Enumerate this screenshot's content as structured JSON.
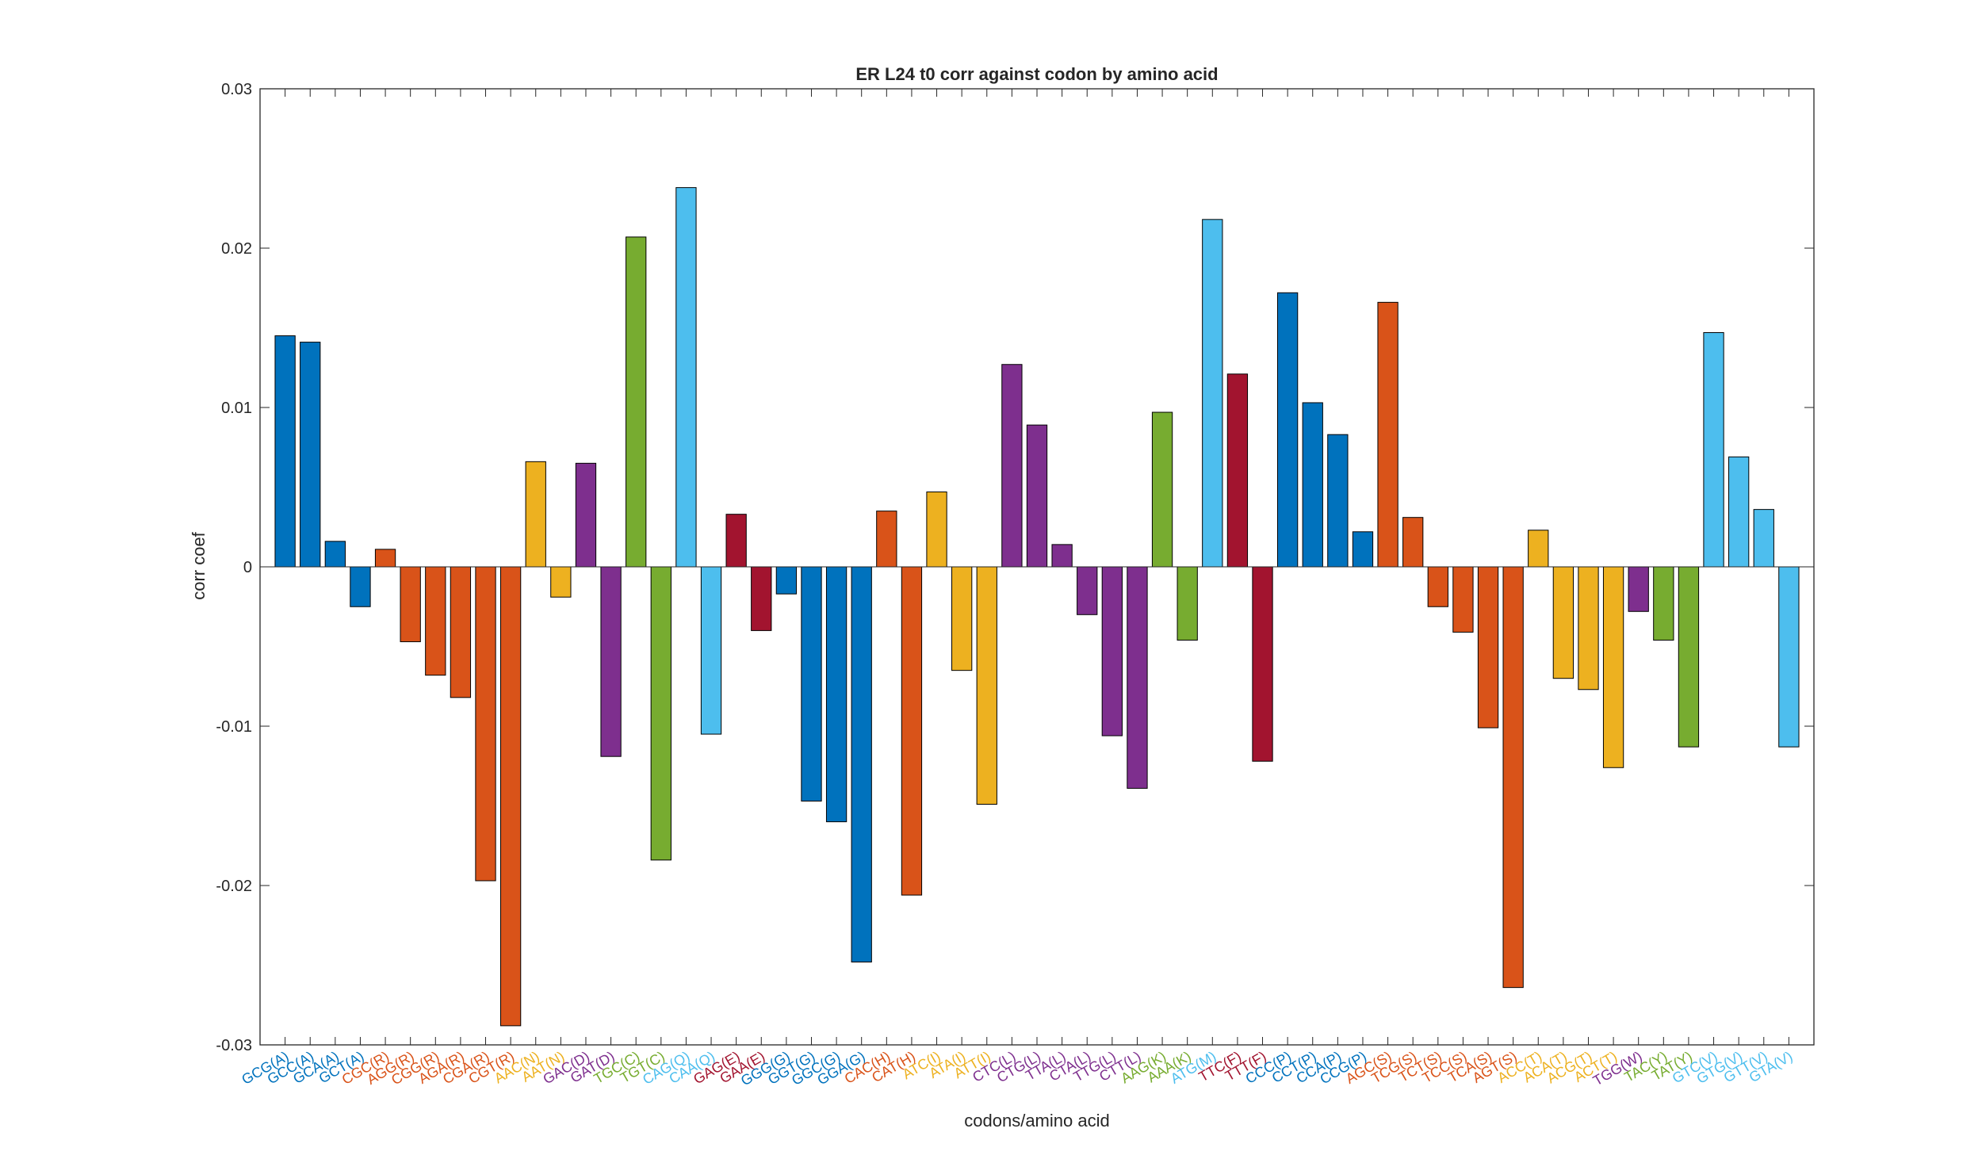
{
  "chart_data": {
    "type": "bar",
    "title": "ER L24 t0 corr against codon by amino acid",
    "xlabel": "codons/amino acid",
    "ylabel": "corr coef",
    "ylim": [
      -0.03,
      0.03
    ],
    "yticks": [
      0.03,
      0.02,
      0.01,
      0,
      -0.01,
      -0.02,
      -0.03
    ],
    "ytick_labels": [
      "0.03",
      "0.02",
      "0.01",
      "0",
      "-0.01",
      "-0.02",
      "-0.03"
    ],
    "grid": false,
    "legend": "none",
    "colors": {
      "A": "#0072BD",
      "R": "#D95319",
      "N": "#EDB120",
      "D": "#7E2F8E",
      "C": "#77AC30",
      "Q": "#4DBEEE",
      "E": "#A2142F",
      "G": "#0072BD",
      "H": "#D95319",
      "I": "#EDB120",
      "L": "#7E2F8E",
      "K": "#77AC30",
      "M": "#4DBEEE",
      "F": "#A2142F",
      "P": "#0072BD",
      "S": "#D95319",
      "T": "#EDB120",
      "W": "#7E2F8E",
      "Y": "#77AC30",
      "V": "#4DBEEE"
    },
    "categories": [
      "GCG(A)",
      "GCC(A)",
      "GCA(A)",
      "GCT(A)",
      "CGC(R)",
      "AGG(R)",
      "CGG(R)",
      "AGA(R)",
      "CGA(R)",
      "CGT(R)",
      "AAC(N)",
      "AAT(N)",
      "GAC(D)",
      "GAT(D)",
      "TGC(C)",
      "TGT(C)",
      "CAG(Q)",
      "CAA(Q)",
      "GAG(E)",
      "GAA(E)",
      "GGG(G)",
      "GGT(G)",
      "GGC(G)",
      "GGA(G)",
      "CAC(H)",
      "CAT(H)",
      "ATC(I)",
      "ATA(I)",
      "ATT(I)",
      "CTC(L)",
      "CTG(L)",
      "TTA(L)",
      "CTA(L)",
      "TTG(L)",
      "CTT(L)",
      "AAG(K)",
      "AAA(K)",
      "ATG(M)",
      "TTC(F)",
      "TTT(F)",
      "CCC(P)",
      "CCT(P)",
      "CCA(P)",
      "CCG(P)",
      "AGC(S)",
      "TCG(S)",
      "TCT(S)",
      "TCC(S)",
      "TCA(S)",
      "AGT(S)",
      "ACC(T)",
      "ACA(T)",
      "ACG(T)",
      "ACT(T)",
      "TGG(W)",
      "TAC(Y)",
      "TAT(Y)",
      "GTC(V)",
      "GTG(V)",
      "GTT(V)",
      "GTA(V)"
    ],
    "values": [
      0.0145,
      0.0141,
      0.0016,
      -0.0025,
      0.0011,
      -0.0047,
      -0.0068,
      -0.0082,
      -0.0197,
      -0.0288,
      0.0066,
      -0.0019,
      0.0065,
      -0.0119,
      0.0207,
      -0.0184,
      0.0238,
      -0.0105,
      0.0033,
      -0.004,
      -0.0017,
      -0.0147,
      -0.016,
      -0.0248,
      0.0035,
      -0.0206,
      0.0047,
      -0.0065,
      -0.0149,
      0.0127,
      0.0089,
      0.0014,
      -0.003,
      -0.0106,
      -0.0139,
      0.0097,
      -0.0046,
      0.0218,
      0.0121,
      -0.0122,
      0.0172,
      0.0103,
      0.0083,
      0.0022,
      0.0166,
      0.0031,
      -0.0025,
      -0.0041,
      -0.0101,
      -0.0264,
      0.0023,
      -0.007,
      -0.0077,
      -0.0126,
      -0.0028,
      -0.0046,
      -0.0113,
      0.0147,
      0.0069,
      0.0036,
      -0.0113
    ]
  }
}
